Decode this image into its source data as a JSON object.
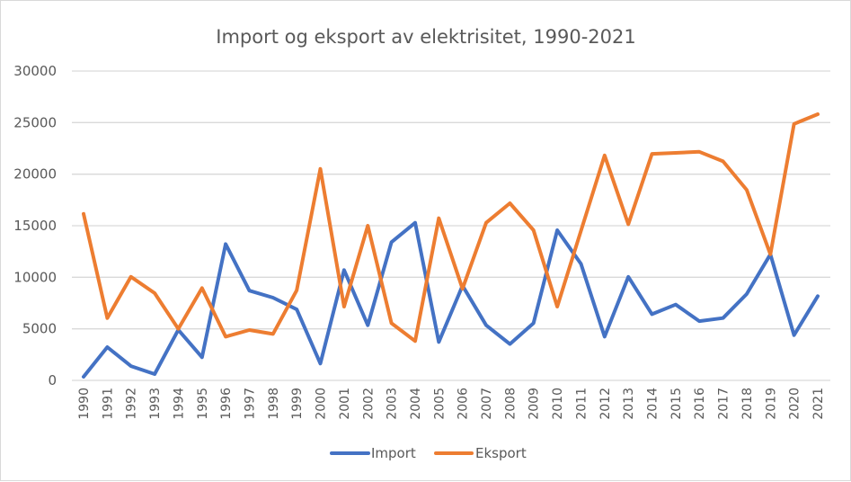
{
  "chart_data": {
    "type": "line",
    "title": "Import og eksport av elektrisitet, 1990-2021",
    "xlabel": "",
    "ylabel": "",
    "ylim": [
      0,
      30000
    ],
    "yticks": [
      "0",
      "5000",
      "10000",
      "15000",
      "20000",
      "25000",
      "30000"
    ],
    "ytick_values": [
      0,
      5000,
      10000,
      15000,
      20000,
      25000,
      30000
    ],
    "grid": true,
    "legend_position": "bottom",
    "categories": [
      "1990",
      "1991",
      "1992",
      "1993",
      "1994",
      "1995",
      "1996",
      "1997",
      "1998",
      "1999",
      "2000",
      "2001",
      "2002",
      "2003",
      "2004",
      "2005",
      "2006",
      "2007",
      "2008",
      "2009",
      "2010",
      "2011",
      "2012",
      "2013",
      "2014",
      "2015",
      "2016",
      "2017",
      "2018",
      "2019",
      "2020",
      "2021"
    ],
    "series": [
      {
        "name": "Import",
        "color": "#4472c4",
        "values": [
          350,
          3230,
          1390,
          610,
          4900,
          2240,
          13220,
          8700,
          8020,
          6880,
          1630,
          10700,
          5350,
          13400,
          15290,
          3720,
          9180,
          5350,
          3520,
          5550,
          14560,
          11300,
          4240,
          10050,
          6420,
          7350,
          5750,
          6040,
          8370,
          12230,
          4390,
          8170
        ]
      },
      {
        "name": "Eksport",
        "color": "#ed7d31",
        "values": [
          16150,
          6040,
          10050,
          8460,
          5000,
          8950,
          4240,
          4880,
          4500,
          8740,
          20510,
          7150,
          15000,
          5550,
          3810,
          15720,
          8890,
          15290,
          17180,
          14560,
          7150,
          14500,
          21820,
          15140,
          21970,
          22060,
          22170,
          21240,
          18480,
          12230,
          24870,
          25810
        ]
      }
    ]
  }
}
